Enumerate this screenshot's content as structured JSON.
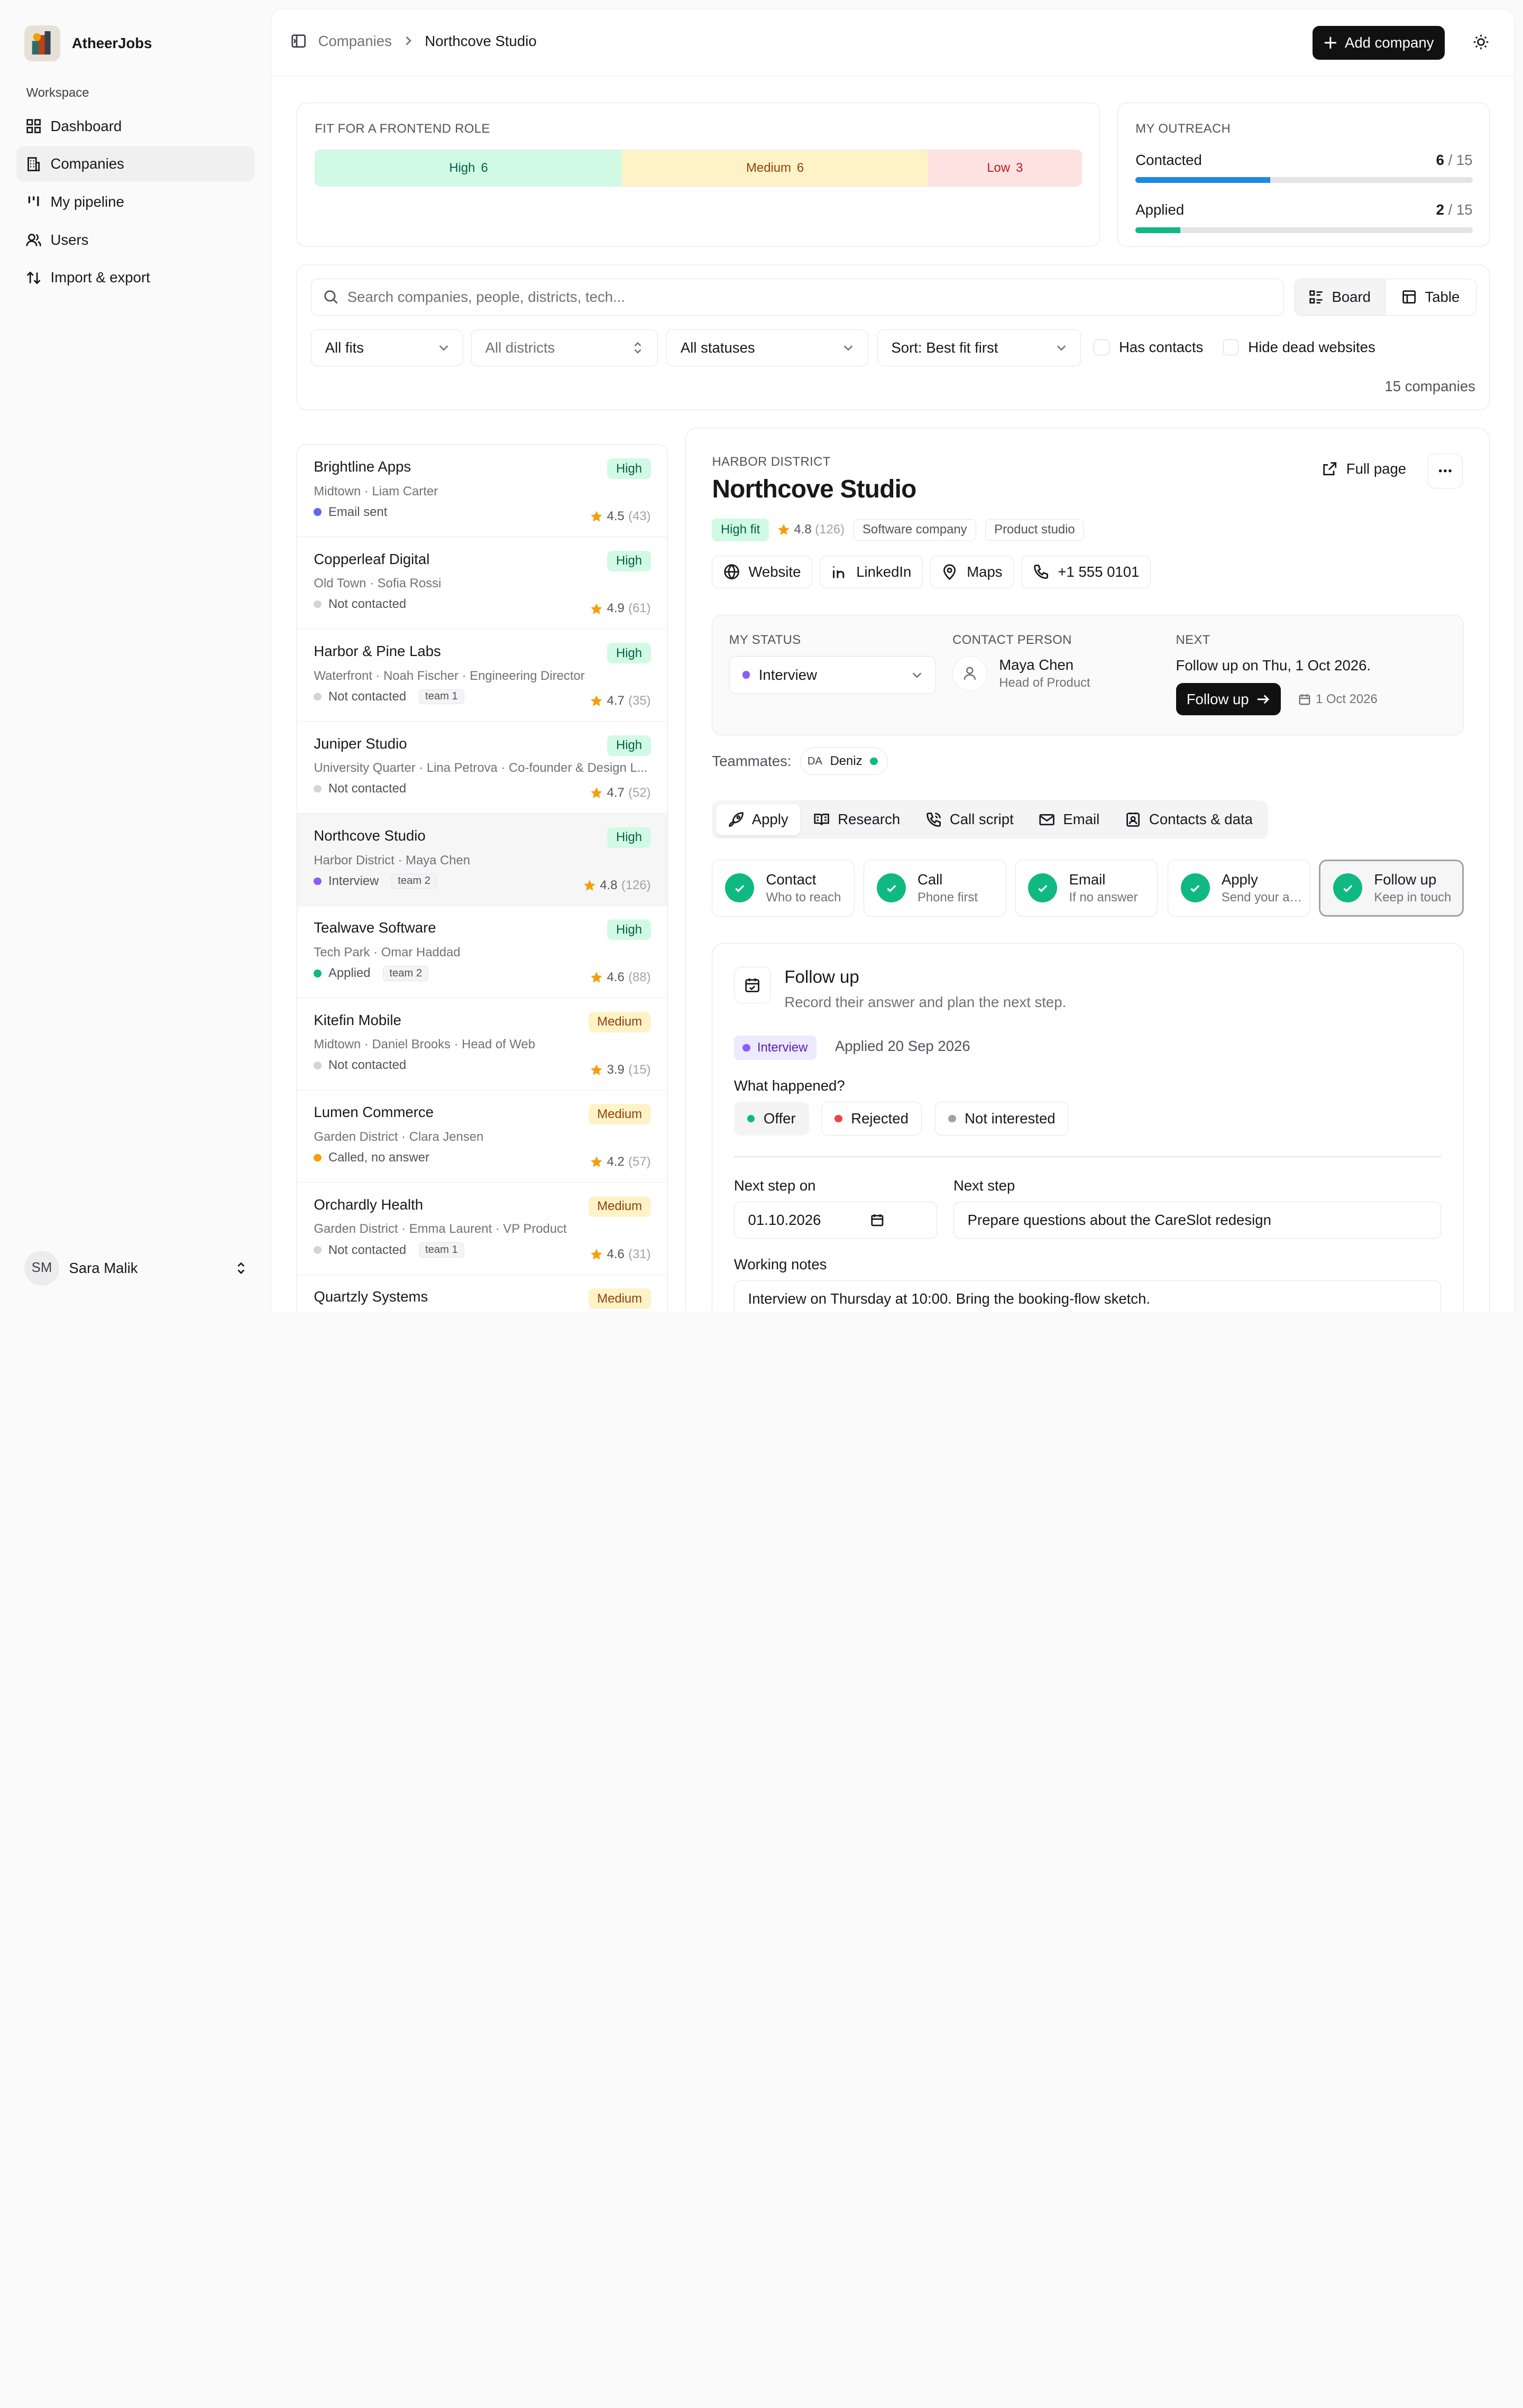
{
  "app": {
    "name": "AtheerJobs"
  },
  "sidebar": {
    "section_label": "Workspace",
    "items": [
      {
        "label": "Dashboard",
        "icon": "grid-icon"
      },
      {
        "label": "Companies",
        "icon": "building-icon",
        "active": true
      },
      {
        "label": "My pipeline",
        "icon": "kanban-icon"
      },
      {
        "label": "Users",
        "icon": "users-icon"
      },
      {
        "label": "Import & export",
        "icon": "arrows-icon"
      }
    ],
    "user": {
      "initials": "SM",
      "name": "Sara Malik"
    }
  },
  "topbar": {
    "breadcrumb": [
      "Companies",
      "Northcove Studio"
    ],
    "add_button": "Add company"
  },
  "fit_panel": {
    "label": "FIT FOR A FRONTEND ROLE",
    "segments": [
      {
        "label": "High",
        "count": 6,
        "color": "#d1fae5"
      },
      {
        "label": "Medium",
        "count": 6,
        "color": "#fef3c7"
      },
      {
        "label": "Low",
        "count": 3,
        "color": "#fee2e2"
      }
    ]
  },
  "outreach": {
    "label": "MY OUTREACH",
    "rows": [
      {
        "label": "Contacted",
        "value": 6,
        "total": "/ 15",
        "color": "#1e88e5"
      },
      {
        "label": "Applied",
        "value": 2,
        "total": "/ 15",
        "color": "#10b981"
      }
    ]
  },
  "filters": {
    "search_placeholder": "Search companies, people, districts, tech...",
    "view_board": "Board",
    "view_table": "Table",
    "fit": "All fits",
    "district": "All districts",
    "status": "All statuses",
    "sort": "Sort: Best fit first",
    "has_contacts": "Has contacts",
    "hide_dead": "Hide dead websites",
    "count": "15 companies"
  },
  "companies": [
    {
      "name": "Brightline Apps",
      "sub": "Midtown · Liam Carter",
      "status": "Email sent",
      "dot": "#6366f1",
      "team": "",
      "fit": "High",
      "rating": "4.5",
      "count": "(43)"
    },
    {
      "name": "Copperleaf Digital",
      "sub": "Old Town · Sofia Rossi",
      "status": "Not contacted",
      "dot": "#d4d4d8",
      "team": "",
      "fit": "High",
      "rating": "4.9",
      "count": "(61)"
    },
    {
      "name": "Harbor & Pine Labs",
      "sub": "Waterfront · Noah Fischer · Engineering Director",
      "status": "Not contacted",
      "dot": "#d4d4d8",
      "team": "team 1",
      "fit": "High",
      "rating": "4.7",
      "count": "(35)"
    },
    {
      "name": "Juniper Studio",
      "sub": "University Quarter · Lina Petrova · Co-founder & Design L...",
      "status": "Not contacted",
      "dot": "#d4d4d8",
      "team": "",
      "fit": "High",
      "rating": "4.7",
      "count": "(52)"
    },
    {
      "name": "Northcove Studio",
      "sub": "Harbor District · Maya Chen",
      "status": "Interview",
      "dot": "#8b5cf6",
      "team": "team 2",
      "fit": "High",
      "rating": "4.8",
      "count": "(126)",
      "selected": true
    },
    {
      "name": "Tealwave Software",
      "sub": "Tech Park · Omar Haddad",
      "status": "Applied",
      "dot": "#10b981",
      "team": "team 2",
      "fit": "High",
      "rating": "4.6",
      "count": "(88)"
    },
    {
      "name": "Kitefin Mobile",
      "sub": "Midtown · Daniel Brooks · Head of Web",
      "status": "Not contacted",
      "dot": "#d4d4d8",
      "team": "",
      "fit": "Medium",
      "rating": "3.9",
      "count": "(15)"
    },
    {
      "name": "Lumen Commerce",
      "sub": "Garden District · Clara Jensen",
      "status": "Called, no answer",
      "dot": "#f59e0b",
      "team": "",
      "fit": "Medium",
      "rating": "4.2",
      "count": "(57)"
    },
    {
      "name": "Orchardly Health",
      "sub": "Garden District · Emma Laurent · VP Product",
      "status": "Not contacted",
      "dot": "#d4d4d8",
      "team": "team 1",
      "fit": "Medium",
      "rating": "4.6",
      "count": "(31)"
    },
    {
      "name": "Quartzly Systems",
      "sub": "",
      "status": "",
      "dot": "",
      "team": "",
      "fit": "Medium",
      "rating": "",
      "count": ""
    }
  ],
  "detail": {
    "district": "HARBOR DISTRICT",
    "name": "Northcove Studio",
    "full_page": "Full page",
    "fit_badge": "High fit",
    "rating": "4.8",
    "rating_count": "(126)",
    "tags": [
      "Software company",
      "Product studio"
    ],
    "links": {
      "website": "Website",
      "linkedin": "LinkedIn",
      "maps": "Maps",
      "phone": "+1 555 0101"
    },
    "status_label": "MY STATUS",
    "status_value": "Interview",
    "contact_label": "CONTACT PERSON",
    "contact_name": "Maya Chen",
    "contact_role": "Head of Product",
    "next_label": "NEXT",
    "next_text": "Follow up on Thu, 1 Oct 2026.",
    "next_button": "Follow up",
    "next_date": "1 Oct 2026",
    "teammates_label": "Teammates:",
    "teammate_initials": "DA",
    "teammate_name": "Deniz",
    "tabs": [
      "Apply",
      "Research",
      "Call script",
      "Email",
      "Contacts & data"
    ],
    "steps": [
      {
        "title": "Contact",
        "sub": "Who to reach"
      },
      {
        "title": "Call",
        "sub": "Phone first"
      },
      {
        "title": "Email",
        "sub": "If no answer"
      },
      {
        "title": "Apply",
        "sub": "Send your application"
      },
      {
        "title": "Follow up",
        "sub": "Keep in touch"
      }
    ],
    "followup": {
      "title": "Follow up",
      "subtitle": "Record their answer and plan the next step.",
      "badge": "Interview",
      "applied": "Applied 20 Sep 2026",
      "question": "What happened?",
      "options": [
        {
          "label": "Offer",
          "color": "#10b981"
        },
        {
          "label": "Rejected",
          "color": "#ef4444"
        },
        {
          "label": "Not interested",
          "color": "#a1a1aa"
        }
      ],
      "next_step_on_label": "Next step on",
      "next_step_on_value": "01.10.2026",
      "next_step_label": "Next step",
      "next_step_value": "Prepare questions about the CareSlot redesign",
      "notes_label": "Working notes",
      "notes_value": "Interview on Thursday at 10:00. Bring the booking-flow sketch."
    }
  }
}
